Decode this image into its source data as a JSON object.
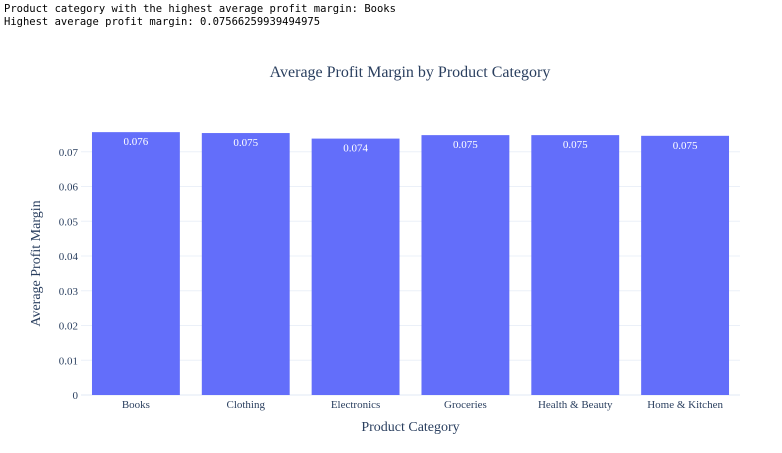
{
  "console": {
    "line1": "Product category with the highest average profit margin: Books",
    "line2": "Highest average profit margin: 0.07566259939494975"
  },
  "colors": {
    "bar": "#636efa",
    "grid": "#ebf0f8",
    "axis": "#2a3f5f"
  },
  "chart_data": {
    "type": "bar",
    "title": "Average Profit Margin by Product Category",
    "xlabel": "Product Category",
    "ylabel": "Average Profit Margin",
    "categories": [
      "Books",
      "Clothing",
      "Electronics",
      "Groceries",
      "Health & Beauty",
      "Home & Kitchen"
    ],
    "values": [
      0.07566,
      0.0754,
      0.0738,
      0.0748,
      0.0748,
      0.0746
    ],
    "data_labels": [
      "0.076",
      "0.075",
      "0.074",
      "0.075",
      "0.075",
      "0.075"
    ],
    "ylim": [
      0,
      0.0757
    ],
    "yticks": [
      0,
      0.01,
      0.02,
      0.03,
      0.04,
      0.05,
      0.06,
      0.07
    ],
    "ytick_labels": [
      "0",
      "0.01",
      "0.02",
      "0.03",
      "0.04",
      "0.05",
      "0.06",
      "0.07"
    ],
    "grid": true,
    "legend": "none"
  }
}
